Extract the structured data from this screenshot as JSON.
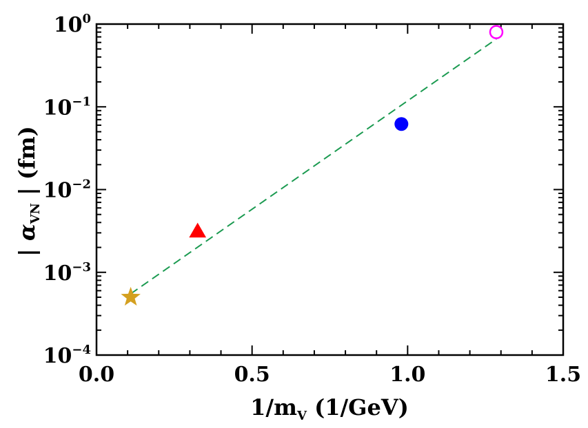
{
  "chart_data": {
    "type": "scatter",
    "title": "",
    "xlabel": {
      "main": "1/m",
      "sub": "V",
      "tail": " (1/GeV)"
    },
    "ylabel": {
      "prefix": "| ",
      "symbol": "α",
      "sub": "VN",
      "tail": " | (fm)"
    },
    "xlim": [
      0.0,
      1.5
    ],
    "ylim_log10": [
      -4,
      0
    ],
    "y_scale": "log",
    "x_ticks": [
      {
        "value": 0.0,
        "label": "0.0"
      },
      {
        "value": 0.5,
        "label": "0.5"
      },
      {
        "value": 1.0,
        "label": "1.0"
      },
      {
        "value": 1.5,
        "label": "1.5"
      }
    ],
    "y_ticks": [
      {
        "exp": -4,
        "base": "10",
        "sup": "−4"
      },
      {
        "exp": -3,
        "base": "10",
        "sup": "−3"
      },
      {
        "exp": -2,
        "base": "10",
        "sup": "−2"
      },
      {
        "exp": -1,
        "base": "10",
        "sup": "−1"
      },
      {
        "exp": 0,
        "base": "10",
        "sup": "0"
      }
    ],
    "points": [
      {
        "name": "star-marker",
        "shape": "star",
        "x": 0.11,
        "y": 0.0005,
        "color": "#d4a020",
        "filled": true
      },
      {
        "name": "triangle-marker",
        "shape": "triangle",
        "x": 0.325,
        "y": 0.0031,
        "color": "#ff0000",
        "filled": true
      },
      {
        "name": "circle-marker",
        "shape": "circle",
        "x": 0.98,
        "y": 0.062,
        "color": "#0000ff",
        "filled": true
      },
      {
        "name": "open-circle-marker",
        "shape": "circle",
        "x": 1.285,
        "y": 0.8,
        "color": "#ff00ff",
        "filled": false
      }
    ],
    "fit_line": {
      "style": "dashed",
      "color": "#1a9a50",
      "from": {
        "x": 0.11,
        "y": 0.00055
      },
      "to": {
        "x": 1.285,
        "y": 0.66
      }
    },
    "grid": false,
    "legend": "none"
  }
}
